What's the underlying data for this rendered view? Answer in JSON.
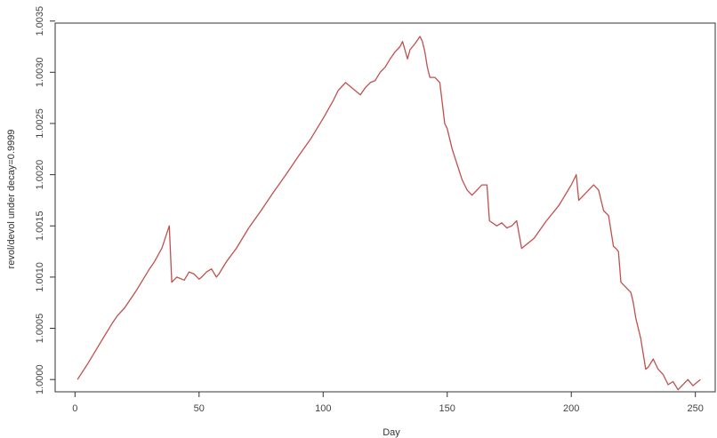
{
  "chart_data": {
    "type": "line",
    "title": "",
    "xlabel": "Day",
    "ylabel": "revol/devol under decay=0.9999",
    "xlim": [
      -8,
      258
    ],
    "ylim": [
      0.99988,
      1.00348
    ],
    "xticks": [
      0,
      50,
      100,
      150,
      200,
      250
    ],
    "xtick_labels": [
      "0",
      "50",
      "100",
      "150",
      "200",
      "250"
    ],
    "yticks": [
      1.0,
      1.0005,
      1.001,
      1.0015,
      1.002,
      1.0025,
      1.003,
      1.0035
    ],
    "ytick_labels": [
      "1.0000",
      "1.0005",
      "1.0010",
      "1.0015",
      "1.0020",
      "1.0025",
      "1.0030",
      "1.0035"
    ],
    "grid": false,
    "line_color": "#c0504d",
    "series": [
      {
        "x": [
          1,
          5,
          10,
          15,
          17,
          20,
          25,
          30,
          32,
          35,
          38,
          39,
          41,
          44,
          46,
          48,
          50,
          51,
          53,
          55,
          57,
          58,
          61,
          65,
          70,
          75,
          80,
          85,
          90,
          95,
          100,
          104,
          106,
          109,
          113,
          115,
          117,
          119,
          121,
          123,
          125,
          127,
          129,
          131,
          132,
          134,
          135,
          137,
          139,
          140,
          141,
          142,
          143,
          145,
          147,
          148,
          149,
          150,
          152,
          154,
          156,
          158,
          160,
          162,
          164,
          166,
          167,
          170,
          172,
          174,
          176,
          178,
          180,
          185,
          190,
          195,
          200,
          202,
          203,
          205,
          207,
          209,
          211,
          213,
          215,
          217,
          218,
          219,
          220,
          222,
          224,
          225,
          226,
          228,
          230,
          231,
          233,
          235,
          237,
          239,
          241,
          243,
          245,
          247,
          249,
          252
        ],
        "y": [
          1.0,
          1.00015,
          1.00035,
          1.00055,
          1.00062,
          1.0007,
          1.00088,
          1.00108,
          1.00115,
          1.00128,
          1.0015,
          1.00095,
          1.001,
          1.00097,
          1.00105,
          1.00103,
          1.00098,
          1.001,
          1.00105,
          1.00108,
          1.001,
          1.00103,
          1.00115,
          1.00128,
          1.00148,
          1.00165,
          1.00183,
          1.002,
          1.00218,
          1.00235,
          1.00255,
          1.00272,
          1.00282,
          1.0029,
          1.00282,
          1.00278,
          1.00285,
          1.0029,
          1.00292,
          1.003,
          1.00305,
          1.00313,
          1.0032,
          1.00325,
          1.0033,
          1.00313,
          1.00322,
          1.00328,
          1.00335,
          1.0033,
          1.0032,
          1.00305,
          1.00295,
          1.00295,
          1.0029,
          1.0027,
          1.0025,
          1.00245,
          1.00225,
          1.0021,
          1.00195,
          1.00185,
          1.0018,
          1.00185,
          1.0019,
          1.0019,
          1.00155,
          1.0015,
          1.00153,
          1.00148,
          1.0015,
          1.00155,
          1.00128,
          1.00138,
          1.00155,
          1.0017,
          1.0019,
          1.002,
          1.00175,
          1.0018,
          1.00185,
          1.0019,
          1.00185,
          1.00165,
          1.0016,
          1.0013,
          1.00128,
          1.00125,
          1.00095,
          1.0009,
          1.00085,
          1.00075,
          1.0006,
          1.0004,
          1.0001,
          1.00012,
          1.0002,
          1.0001,
          1.00005,
          0.99995,
          0.99998,
          0.9999,
          0.99995,
          1.0,
          0.99994,
          1.0
        ]
      }
    ]
  }
}
